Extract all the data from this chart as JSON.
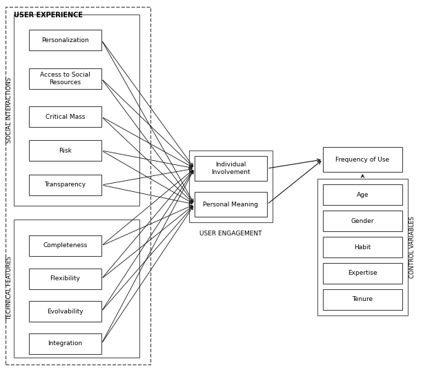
{
  "figsize": [
    6.13,
    5.36
  ],
  "dpi": 100,
  "bg_color": "#ffffff",
  "social_items": [
    "Personalization",
    "Access to Social\nResources",
    "Critical Mass",
    "Risk",
    "Transparency"
  ],
  "technical_items": [
    "Completeness",
    "Flexibility",
    "Evolvability",
    "Integration"
  ],
  "engagement_items": [
    "Individual\nInvolvement",
    "Personal Meaning"
  ],
  "outcome_item": "Frequency of Use",
  "control_items": [
    "Age",
    "Gender",
    "Habit",
    "Expertise",
    "Tenure"
  ],
  "label_user_experience": "USER EXPERIENCE",
  "label_social": "SOCIAL INTERACTIONS",
  "label_technical": "TECHNICAL FEATURES",
  "label_engagement": "USER ENGAGEMENT",
  "label_control": "CONTROL VARIABLES",
  "box_color": "#ffffff",
  "box_edge": "#444444",
  "arrow_color": "#111111",
  "text_color": "#000000"
}
